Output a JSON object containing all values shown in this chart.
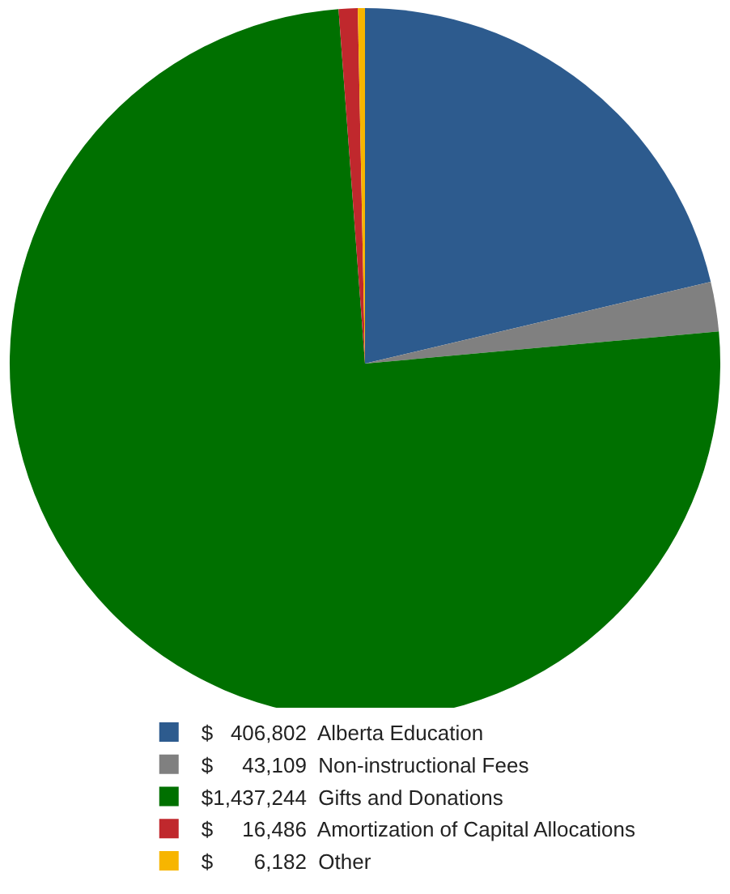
{
  "chart_data": {
    "type": "pie",
    "categories": [
      "Alberta Education",
      "Non-instructional Fees",
      "Gifts and Donations",
      "Amortization of Capital Allocations",
      "Other"
    ],
    "values": [
      406802,
      43109,
      1437244,
      16486,
      6182
    ],
    "value_labels": [
      "$   406,802",
      "$     43,109",
      "$1,437,244",
      "$     16,486",
      "$       6,182"
    ],
    "colors": [
      "#2d5b8e",
      "#808080",
      "#007000",
      "#c0282d",
      "#f7b500"
    ],
    "legend": "bottom"
  }
}
